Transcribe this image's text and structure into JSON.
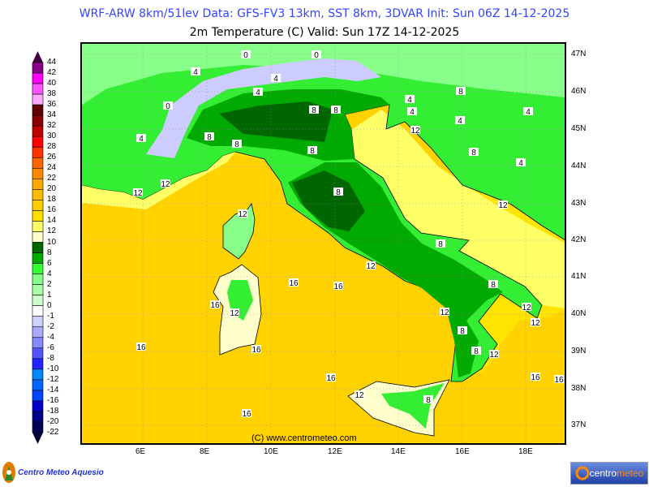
{
  "header": {
    "line1": "WRF-ARW 8km/51lev  Data: GFS-FV3 13km, SST 8km, 3DVAR  Init: Sun 06Z 14-12-2025",
    "line2": "2m Temperature (C)  Valid: Sun 17Z 14-12-2025"
  },
  "map": {
    "copyright": "(C) www.centrometeo.com",
    "lon_ticks": [
      "6E",
      "8E",
      "10E",
      "12E",
      "14E",
      "16E",
      "18E"
    ],
    "lat_ticks": [
      "47N",
      "46N",
      "45N",
      "44N",
      "43N",
      "42N",
      "41N",
      "40N",
      "39N",
      "38N",
      "37N"
    ],
    "contour_labels": [
      "0",
      "0",
      "4",
      "4",
      "0",
      "4",
      "8",
      "8",
      "4",
      "8",
      "8",
      "4",
      "4",
      "8",
      "12",
      "8",
      "4",
      "4",
      "4",
      "8",
      "8",
      "12",
      "12",
      "12",
      "8",
      "12",
      "12",
      "16",
      "16",
      "12",
      "16",
      "12",
      "16",
      "8",
      "8",
      "12",
      "12",
      "8",
      "12",
      "16",
      "16",
      "12",
      "16",
      "8",
      "16",
      "16"
    ],
    "colors": {
      "sea_open": "#ffd200",
      "sea_coast": "#ffe400",
      "warm_coast": "#ffff66",
      "land_mid": "#33ee33",
      "land_light": "#88ff88",
      "land_dark": "#00aa00",
      "land_darkest": "#006600",
      "alps_cold": "#ccccff",
      "coastline": "#000000"
    }
  },
  "colorbar": {
    "labels": [
      "44",
      "42",
      "40",
      "38",
      "36",
      "34",
      "32",
      "30",
      "28",
      "26",
      "24",
      "22",
      "20",
      "18",
      "16",
      "14",
      "12",
      "10",
      "8",
      "6",
      "4",
      "2",
      "1",
      "0",
      "-1",
      "-2",
      "-4",
      "-6",
      "-8",
      "-10",
      "-12",
      "-14",
      "-16",
      "-18",
      "-20",
      "-22"
    ],
    "colors": [
      "#8b008b",
      "#ff00ff",
      "#ff55ff",
      "#ffaaff",
      "#600000",
      "#8b0000",
      "#c00000",
      "#ff0000",
      "#ff3300",
      "#ff6600",
      "#ff8800",
      "#ffaa00",
      "#ffbb00",
      "#ffcc00",
      "#ffe000",
      "#ffff66",
      "#ffffcc",
      "#006600",
      "#00aa00",
      "#33ff33",
      "#88ff88",
      "#aaffaa",
      "#ccffcc",
      "#ffffff",
      "#d0d0ff",
      "#aaaaff",
      "#8888ff",
      "#5555ff",
      "#2222ff",
      "#0088ff",
      "#0066ff",
      "#0044ff",
      "#0000cc",
      "#000088",
      "#000055"
    ],
    "top_arrow_color": "#400040",
    "bottom_arrow_color": "#000033"
  },
  "footer": {
    "left_logo_text": "Centro Meteo Aquesio",
    "right_logo_part1": "centro",
    "right_logo_part2": "meteo"
  }
}
